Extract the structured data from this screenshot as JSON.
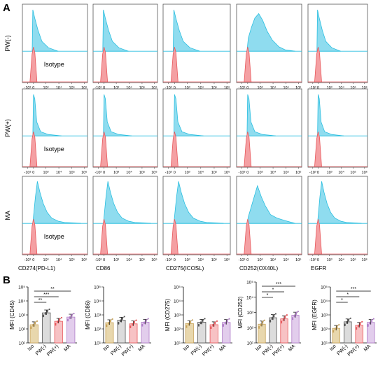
{
  "panel_labels": {
    "a": "A",
    "b": "B"
  },
  "colors": {
    "sample": "#2bbfe0",
    "sample_fill": "#8fdcef",
    "isotype": "#e8575b",
    "isotype_fill": "#f4a0a3",
    "frame": "#555555"
  },
  "flow_grid": {
    "x_ticks": [
      "-10³",
      "0",
      "10³",
      "10⁴",
      "10⁵",
      "10⁶"
    ],
    "isotype_label": "Isotype",
    "rows": [
      "PW(-)",
      "PW(+)",
      "MA"
    ],
    "columns": [
      "CD274(PD-L1)",
      "CD86",
      "CD275(ICOSL)",
      "CD252(OX40L)",
      "EGFR"
    ]
  },
  "chart_data": [
    {
      "type": "bar",
      "ylabel": "MFI (CD45)",
      "categories": [
        "Iso",
        "PW(-)",
        "PW(+)",
        "MA"
      ],
      "values": [
        200,
        1400,
        350,
        700
      ],
      "y_scale": "log",
      "ylim": [
        10,
        100000
      ],
      "y_ticks": [
        "10¹",
        "10²",
        "10³",
        "10⁴",
        "10⁵"
      ],
      "significance": [
        {
          "pair": [
            "Iso",
            "PW(-)"
          ],
          "label": "**"
        },
        {
          "pair": [
            "Iso",
            "PW(+)"
          ],
          "label": "***"
        },
        {
          "pair": [
            "Iso",
            "MA"
          ],
          "label": "**"
        }
      ]
    },
    {
      "type": "bar",
      "ylabel": "MFI (CD86)",
      "categories": [
        "Iso",
        "PW(-)",
        "PW(+)",
        "MA"
      ],
      "values": [
        280,
        420,
        230,
        300
      ],
      "y_scale": "log",
      "ylim": [
        10,
        100000
      ],
      "y_ticks": [
        "10¹",
        "10²",
        "10³",
        "10⁴",
        "10⁵"
      ],
      "significance": []
    },
    {
      "type": "bar",
      "ylabel": "MFI (CD275)",
      "categories": [
        "Iso",
        "PW(-)",
        "PW(+)",
        "MA"
      ],
      "values": [
        240,
        300,
        200,
        290
      ],
      "y_scale": "log",
      "ylim": [
        10,
        100000
      ],
      "y_ticks": [
        "10¹",
        "10²",
        "10³",
        "10⁴",
        "10⁵"
      ],
      "significance": []
    },
    {
      "type": "bar",
      "ylabel": "MFI (CD252)",
      "categories": [
        "Iso",
        "PW(-)",
        "PW(+)",
        "MA"
      ],
      "values": [
        170,
        450,
        380,
        650
      ],
      "y_scale": "log",
      "ylim": [
        10,
        100000
      ],
      "y_ticks": [
        "10¹",
        "10²",
        "10³",
        "10⁴",
        "10⁵"
      ],
      "significance": [
        {
          "pair": [
            "Iso",
            "PW(-)"
          ],
          "label": "*"
        },
        {
          "pair": [
            "Iso",
            "PW(+)"
          ],
          "label": "*"
        },
        {
          "pair": [
            "Iso",
            "MA"
          ],
          "label": "***"
        }
      ]
    },
    {
      "type": "bar",
      "ylabel": "MFI (EGFR)",
      "categories": [
        "Iso",
        "PW(-)",
        "PW(+)",
        "MA"
      ],
      "values": [
        110,
        320,
        180,
        290
      ],
      "y_scale": "log",
      "ylim": [
        10,
        100000
      ],
      "y_ticks": [
        "10¹",
        "10²",
        "10³",
        "10⁴",
        "10⁵"
      ],
      "significance": [
        {
          "pair": [
            "Iso",
            "PW(-)"
          ],
          "label": "*"
        },
        {
          "pair": [
            "Iso",
            "PW(+)"
          ],
          "label": "*"
        },
        {
          "pair": [
            "Iso",
            "MA"
          ],
          "label": "***"
        }
      ]
    }
  ]
}
